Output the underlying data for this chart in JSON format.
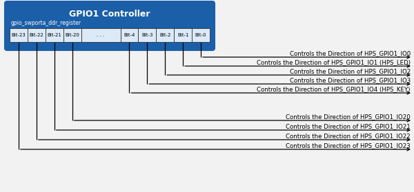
{
  "title": "GPIO1 Controller",
  "subtitle": "gpio_swporta_ddr_register",
  "bits": [
    "Bit-23",
    "Bit-22",
    "Bit-21",
    "Bit-20",
    ". . .",
    "Bit-4",
    "Bit-3",
    "Bit-2",
    "Bit-1",
    "Bit-0"
  ],
  "header_bg": "#1a5fa8",
  "header_text_color": "#ffffff",
  "bit_box_bg": "#dce9f7",
  "bit_box_border": "#333333",
  "bg_color": "#f2f2f2",
  "labels_group1": [
    "Controls the Direction of HPS_GPIO1_IO0",
    "Controls the Direction of HPS_GPIO1_IO1 (HPS_LED)",
    "Controls the Direction of HPS_GPIO1_IO2",
    "Controls the Direction of HPS_GPIO1_IO3",
    "Controls the Direction of HPS_GPIO1_IO4 (HPS_KEY)"
  ],
  "labels_group2": [
    "Controls the Direction of HPS_GPIO1_IO20",
    "Controls the Direction of HPS_GPIO1_IO21",
    "Controls the Direction of HPS_GPIO1_IO22",
    "Controls the Direction of HPS_GPIO1_IO23"
  ],
  "fig_width": 6.0,
  "fig_height": 2.79
}
